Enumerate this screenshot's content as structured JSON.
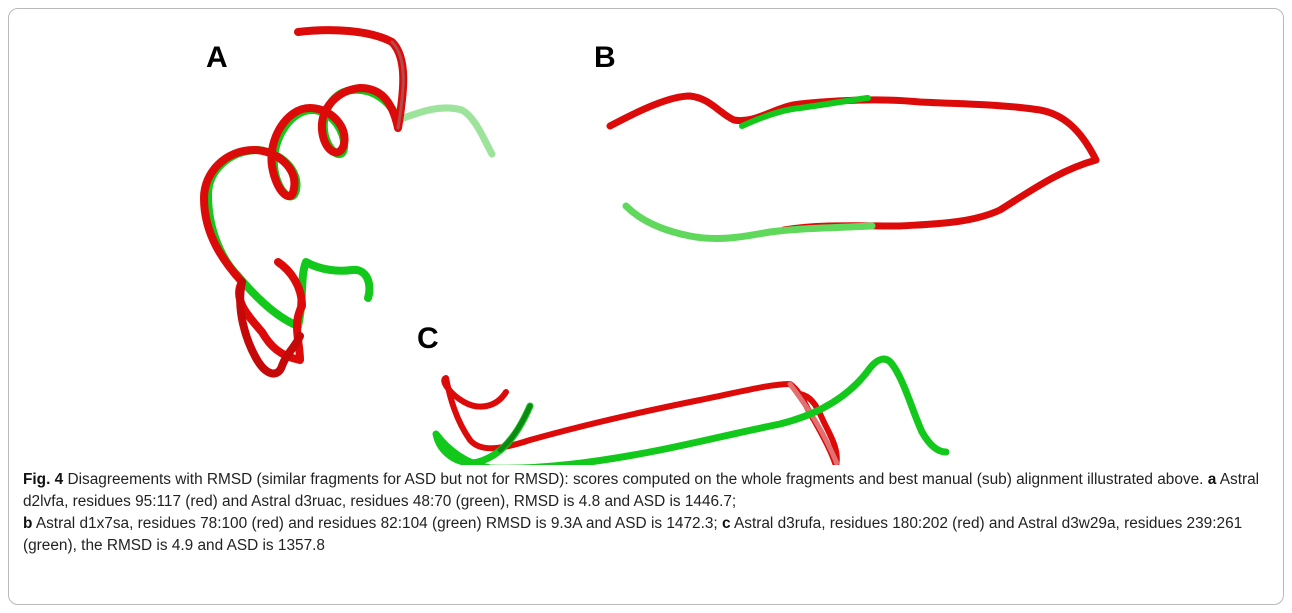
{
  "figure": {
    "panel_labels": {
      "a": "A",
      "b": "B",
      "c": "C"
    },
    "colors": {
      "red": "#dd0a0a",
      "green": "#12c81a",
      "frame": "#b9b9b9"
    }
  },
  "caption": {
    "fig_label": "Fig. 4",
    "intro": "Disagreements with RMSD (similar fragments for ASD but not for RMSD): scores computed on the whole fragments and best manual (sub) alignment illustrated above.",
    "part_a_letter": "a",
    "part_a_text": "Astral d2lvfa, residues 95:117 (red) and Astral d3ruac, residues 48:70 (green), RMSD is 4.8 and ASD is 1446.7;",
    "part_b_letter": "b",
    "part_b_text": "Astral d1x7sa, residues 78:100 (red) and residues 82:104 (green) RMSD is 9.3A and ASD is 1472.3;",
    "part_c_letter": "c",
    "part_c_text": "Astral d3rufa, residues 180:202 (red) and Astral d3w29a, residues 239:261 (green), the RMSD is 4.9 and ASD is 1357.8"
  }
}
